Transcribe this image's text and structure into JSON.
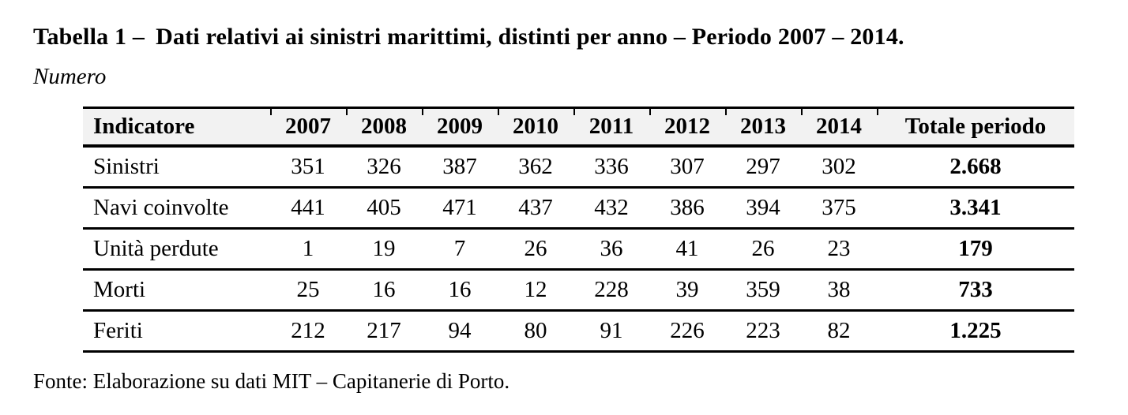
{
  "title": {
    "label": "Tabella 1 –",
    "text": "Dati relativi ai sinistri marittimi, distinti per anno – Periodo 2007 – 2014."
  },
  "subtitle": "Numero",
  "table": {
    "columns": [
      "Indicatore",
      "2007",
      "2008",
      "2009",
      "2010",
      "2011",
      "2012",
      "2013",
      "2014",
      "Totale periodo"
    ],
    "rows": [
      {
        "label": "Sinistri",
        "values": [
          "351",
          "326",
          "387",
          "362",
          "336",
          "307",
          "297",
          "302"
        ],
        "total": "2.668"
      },
      {
        "label": "Navi coinvolte",
        "values": [
          "441",
          "405",
          "471",
          "437",
          "432",
          "386",
          "394",
          "375"
        ],
        "total": "3.341"
      },
      {
        "label": "Unità perdute",
        "values": [
          "1",
          "19",
          "7",
          "26",
          "36",
          "41",
          "26",
          "23"
        ],
        "total": "179"
      },
      {
        "label": "Morti",
        "values": [
          "25",
          "16",
          "16",
          "12",
          "228",
          "39",
          "359",
          "38"
        ],
        "total": "733"
      },
      {
        "label": "Feriti",
        "values": [
          "212",
          "217",
          "94",
          "80",
          "91",
          "226",
          "223",
          "82"
        ],
        "total": "1.225"
      }
    ]
  },
  "source": "Fonte: Elaborazione su dati MIT – Capitanerie di Porto.",
  "colors": {
    "header_background": "#f2f2f2",
    "border": "#000000",
    "text": "#000000",
    "page_background": "#ffffff"
  }
}
